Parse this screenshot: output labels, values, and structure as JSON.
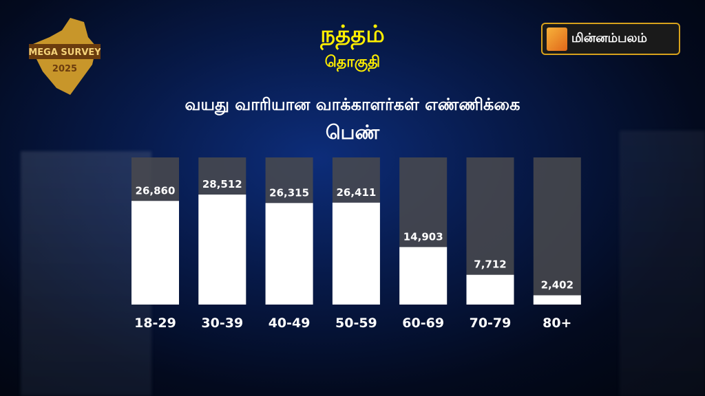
{
  "header": {
    "title": "நத்தம்",
    "subtitle": "தொகுதி",
    "survey_logo": "MEGA SURVEY 2025",
    "brand": "மின்னம்பலம்"
  },
  "colors": {
    "title": "#ffee00",
    "bar_fill": "#ffffff",
    "bar_track": "#4a4a4e",
    "brand_border": "#d8a21c"
  },
  "chart_data": {
    "type": "bar",
    "title": "வயது வாரியான வாக்காளர்கள் எண்ணிக்கை",
    "subtitle": "பெண்",
    "categories": [
      "18-29",
      "30-39",
      "40-49",
      "50-59",
      "60-69",
      "70-79",
      "80+"
    ],
    "values": [
      26860,
      28512,
      26315,
      26411,
      14903,
      7712,
      2402
    ],
    "value_labels": [
      "26,860",
      "28,512",
      "26,315",
      "26,411",
      "14,903",
      "7,712",
      "2,402"
    ],
    "grid": false,
    "legend": "none"
  }
}
